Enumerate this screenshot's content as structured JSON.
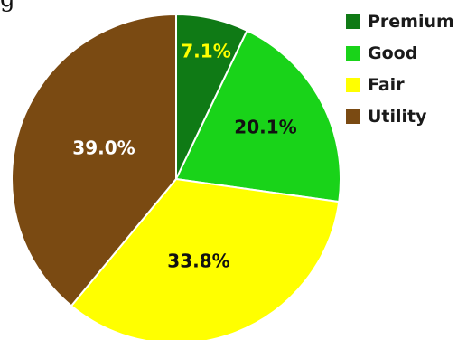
{
  "top_text": "g",
  "chart_data": {
    "type": "pie",
    "categories": [
      "Premium",
      "Good",
      "Fair",
      "Utility"
    ],
    "values": [
      7.1,
      20.1,
      33.8,
      39.0
    ],
    "labels": [
      "7.1%",
      "20.1%",
      "33.8%",
      "39.0%"
    ],
    "colors": [
      "#0f7a15",
      "#19d319",
      "#ffff00",
      "#7a4a12"
    ],
    "label_colors": [
      "#ffff00",
      "#111111",
      "#111111",
      "#ffffff"
    ],
    "legend_position": "right",
    "title": ""
  }
}
